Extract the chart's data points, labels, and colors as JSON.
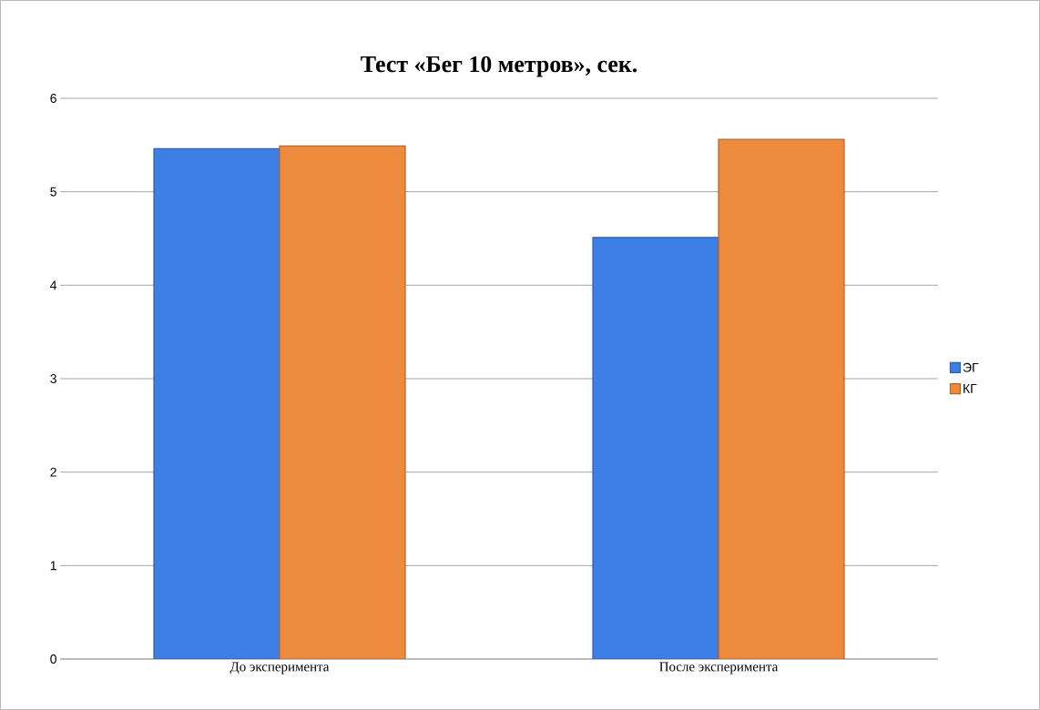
{
  "chart_data": {
    "type": "bar",
    "title": "Тест «Бег 10 метров», сек.",
    "categories": [
      "До эксперимента",
      "После эксперимента"
    ],
    "series": [
      {
        "name": "ЭГ",
        "color": "#3d7fe6",
        "values": [
          5.46,
          4.51
        ]
      },
      {
        "name": "КГ",
        "color": "#ee8a3c",
        "values": [
          5.49,
          5.56
        ]
      }
    ],
    "ylim": [
      0,
      6
    ],
    "yticks": [
      0,
      1,
      2,
      3,
      4,
      5,
      6
    ],
    "grid": "y",
    "legend": "right"
  }
}
